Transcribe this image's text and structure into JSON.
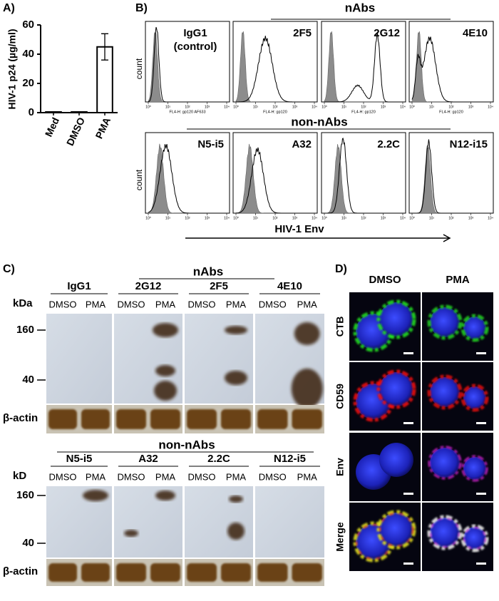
{
  "chart_data": {
    "type": "bar",
    "panel_label": "A)",
    "ylabel": "HIV-1 p24 (µg/ml)",
    "categories": [
      "Med",
      "DMSO",
      "PMA"
    ],
    "values": [
      0.5,
      0.5,
      45
    ],
    "errors": [
      0,
      0,
      9
    ],
    "color": "#ffffff",
    "edgecolor": "#000000",
    "ylim": [
      0,
      60
    ],
    "yticks": [
      0,
      20,
      40,
      60
    ]
  },
  "panel_b": {
    "label": "B)",
    "ylabel": "count",
    "xlabel": "HIV-1 Env",
    "tick_labels": [
      "10⁰",
      "10¹",
      "10²",
      "10³",
      "10⁴"
    ],
    "top": {
      "group": "nAbs",
      "panels": [
        {
          "title": "IgG1",
          "subtitle": "(control)",
          "axis_label": "FL4-H: gp120 AF633"
        },
        {
          "title": "2F5",
          "axis_label": "FL4-H: gp120"
        },
        {
          "title": "2G12",
          "axis_label": "FL4-H: gp120"
        },
        {
          "title": "4E10",
          "axis_label": "FL4-H: gp120"
        }
      ]
    },
    "bottom": {
      "group": "non-nAbs",
      "panels": [
        {
          "title": "N5-i5"
        },
        {
          "title": "A32"
        },
        {
          "title": "2.2C"
        },
        {
          "title": "N12-i15"
        }
      ]
    }
  },
  "panel_c": {
    "label": "C)",
    "loading": "β-actin",
    "lanes": [
      "DMSO",
      "PMA"
    ],
    "markers": [
      "160",
      "40"
    ],
    "top": {
      "group": "nAbs",
      "unit": "kDa",
      "antibodies": [
        "IgG1",
        "2G12",
        "2F5",
        "4E10"
      ]
    },
    "bottom": {
      "group": "non-nAbs",
      "unit": "kD",
      "antibodies": [
        "N5-i5",
        "A32",
        "2.2C",
        "N12-i5"
      ]
    }
  },
  "panel_d": {
    "label": "D)",
    "columns": [
      "DMSO",
      "PMA"
    ],
    "rows": [
      "CTB",
      "CD59",
      "Env",
      "Merge"
    ]
  }
}
